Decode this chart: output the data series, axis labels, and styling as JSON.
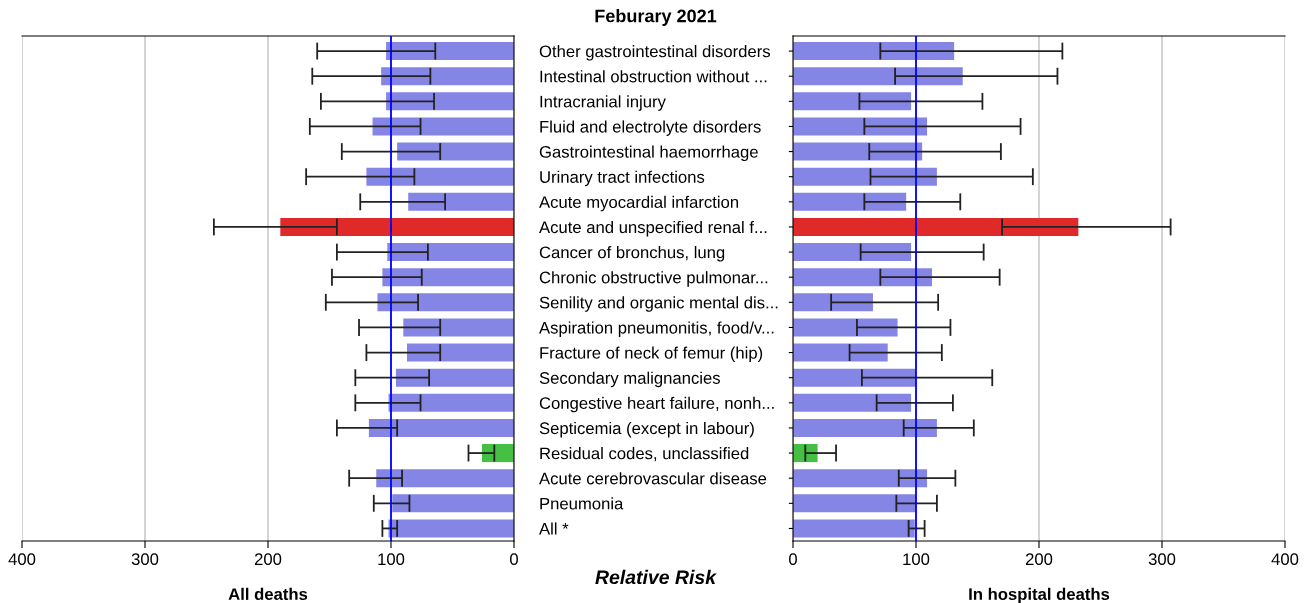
{
  "chart_data": [
    {
      "type": "bar",
      "orientation": "horizontal",
      "title": "Feburary 2021",
      "xlabel": "All deaths",
      "annotations": [
        "Relative Risk"
      ],
      "categories": [
        "Other gastrointestinal disorders",
        "Intestinal obstruction without ...",
        "Intracranial injury",
        "Fluid and electrolyte disorders",
        "Gastrointestinal haemorrhage",
        "Urinary tract infections",
        "Acute myocardial infarction",
        "Acute and unspecified renal f...",
        "Cancer of bronchus, lung",
        "Chronic obstructive pulmonar...",
        "Senility and organic mental dis...",
        "Aspiration pneumonitis, food/v...",
        "Fracture of neck of femur (hip)",
        "Secondary malignancies",
        "Congestive heart failure, nonh...",
        "Septicemia (except in labour)",
        "Residual codes, unclassified",
        "Acute cerebrovascular disease",
        "Pneumonia",
        "All *"
      ],
      "values": [
        104,
        108,
        104,
        115,
        95,
        120,
        86,
        190,
        103,
        107,
        111,
        90,
        87,
        96,
        102,
        118,
        26,
        112,
        99,
        102
      ],
      "errors": [
        [
          64,
          160
        ],
        [
          68,
          164
        ],
        [
          65,
          157
        ],
        [
          76,
          166
        ],
        [
          60,
          140
        ],
        [
          81,
          169
        ],
        [
          56,
          125
        ],
        [
          144,
          244
        ],
        [
          70,
          144
        ],
        [
          75,
          148
        ],
        [
          78,
          153
        ],
        [
          60,
          126
        ],
        [
          60,
          120
        ],
        [
          69,
          129
        ],
        [
          76,
          129
        ],
        [
          95,
          144
        ],
        [
          16,
          37
        ],
        [
          91,
          134
        ],
        [
          85,
          114
        ],
        [
          95,
          107
        ]
      ],
      "colors": [
        "#8585e6",
        "#8585e6",
        "#8585e6",
        "#8585e6",
        "#8585e6",
        "#8585e6",
        "#8585e6",
        "#e02a2a",
        "#8585e6",
        "#8585e6",
        "#8585e6",
        "#8585e6",
        "#8585e6",
        "#8585e6",
        "#8585e6",
        "#8585e6",
        "#45c045",
        "#8585e6",
        "#8585e6",
        "#8585e6"
      ],
      "xlim": [
        400,
        0
      ],
      "xticks": [
        400,
        300,
        200,
        100,
        0
      ],
      "grid": "x",
      "ref_lines": [
        {
          "axis": "x",
          "value": 100,
          "color": "#0000ff"
        }
      ]
    },
    {
      "type": "bar",
      "orientation": "horizontal",
      "xlabel": "In hospital deaths",
      "tick_labels": "x",
      "categories": [
        null,
        null,
        null,
        null,
        null,
        null,
        null,
        null,
        null,
        null,
        null,
        null,
        null,
        null,
        null,
        null,
        null,
        null,
        null,
        null
      ],
      "values": [
        131,
        138,
        96,
        109,
        105,
        117,
        92,
        232,
        96,
        113,
        65,
        85,
        77,
        100,
        96,
        117,
        20,
        109,
        100,
        99
      ],
      "errors": [
        [
          71,
          219
        ],
        [
          83,
          215
        ],
        [
          54,
          154
        ],
        [
          58,
          185
        ],
        [
          62,
          169
        ],
        [
          63,
          195
        ],
        [
          58,
          136
        ],
        [
          170,
          307
        ],
        [
          55,
          155
        ],
        [
          71,
          168
        ],
        [
          31,
          118
        ],
        [
          52,
          128
        ],
        [
          46,
          121
        ],
        [
          56,
          162
        ],
        [
          68,
          130
        ],
        [
          90,
          147
        ],
        [
          10,
          35
        ],
        [
          86,
          132
        ],
        [
          84,
          117
        ],
        [
          94,
          107
        ]
      ],
      "colors": [
        "#8585e6",
        "#8585e6",
        "#8585e6",
        "#8585e6",
        "#8585e6",
        "#8585e6",
        "#8585e6",
        "#e02a2a",
        "#8585e6",
        "#8585e6",
        "#8585e6",
        "#8585e6",
        "#8585e6",
        "#8585e6",
        "#8585e6",
        "#8585e6",
        "#45c045",
        "#8585e6",
        "#8585e6",
        "#8585e6"
      ],
      "xlim": [
        0,
        400
      ],
      "xticks": [
        0,
        100,
        200,
        300,
        400
      ],
      "grid": "x",
      "ref_lines": [
        {
          "axis": "x",
          "value": 100,
          "color": "#0000ff"
        }
      ]
    }
  ]
}
